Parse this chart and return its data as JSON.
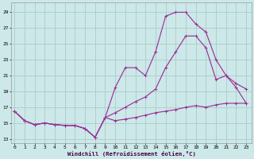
{
  "xlabel": "Windchill (Refroidissement éolien,°C)",
  "background_color": "#cde8e8",
  "grid_color": "#aacccc",
  "line_color": "#993399",
  "y_ticks": [
    13,
    15,
    17,
    19,
    21,
    23,
    25,
    27,
    29
  ],
  "ylim": [
    12.5,
    30.2
  ],
  "xlim": [
    -0.3,
    23.5
  ],
  "curve1_x": [
    0,
    1,
    2,
    3,
    4,
    5,
    6,
    7,
    8,
    9,
    10,
    11,
    12,
    13,
    14,
    15,
    16,
    17,
    18,
    19,
    20,
    21,
    22,
    23
  ],
  "curve1_y": [
    16.5,
    15.3,
    14.8,
    15.0,
    14.8,
    14.7,
    14.7,
    14.3,
    13.2,
    15.7,
    16.3,
    17.0,
    17.7,
    18.3,
    19.3,
    22.0,
    24.0,
    26.0,
    26.0,
    24.5,
    20.5,
    21.0,
    20.0,
    19.3
  ],
  "curve2_x": [
    0,
    1,
    2,
    3,
    4,
    5,
    6,
    7,
    8,
    9,
    10,
    11,
    12,
    13,
    14,
    15,
    16,
    17,
    18,
    19,
    20,
    21,
    22,
    23
  ],
  "curve2_y": [
    16.5,
    15.3,
    14.8,
    15.0,
    14.8,
    14.7,
    14.7,
    14.3,
    13.2,
    15.7,
    19.5,
    22.0,
    22.0,
    21.0,
    24.0,
    28.5,
    29.0,
    29.0,
    27.5,
    26.5,
    23.0,
    21.0,
    19.5,
    17.5
  ],
  "curve3_x": [
    0,
    1,
    2,
    3,
    4,
    5,
    6,
    7,
    8,
    9,
    10,
    11,
    12,
    13,
    14,
    15,
    16,
    17,
    18,
    19,
    20,
    21,
    22,
    23
  ],
  "curve3_y": [
    16.5,
    15.3,
    14.8,
    15.0,
    14.8,
    14.7,
    14.7,
    14.3,
    13.2,
    15.7,
    15.3,
    15.5,
    15.7,
    16.0,
    16.3,
    16.5,
    16.7,
    17.0,
    17.2,
    17.0,
    17.3,
    17.5,
    17.5,
    17.5
  ]
}
